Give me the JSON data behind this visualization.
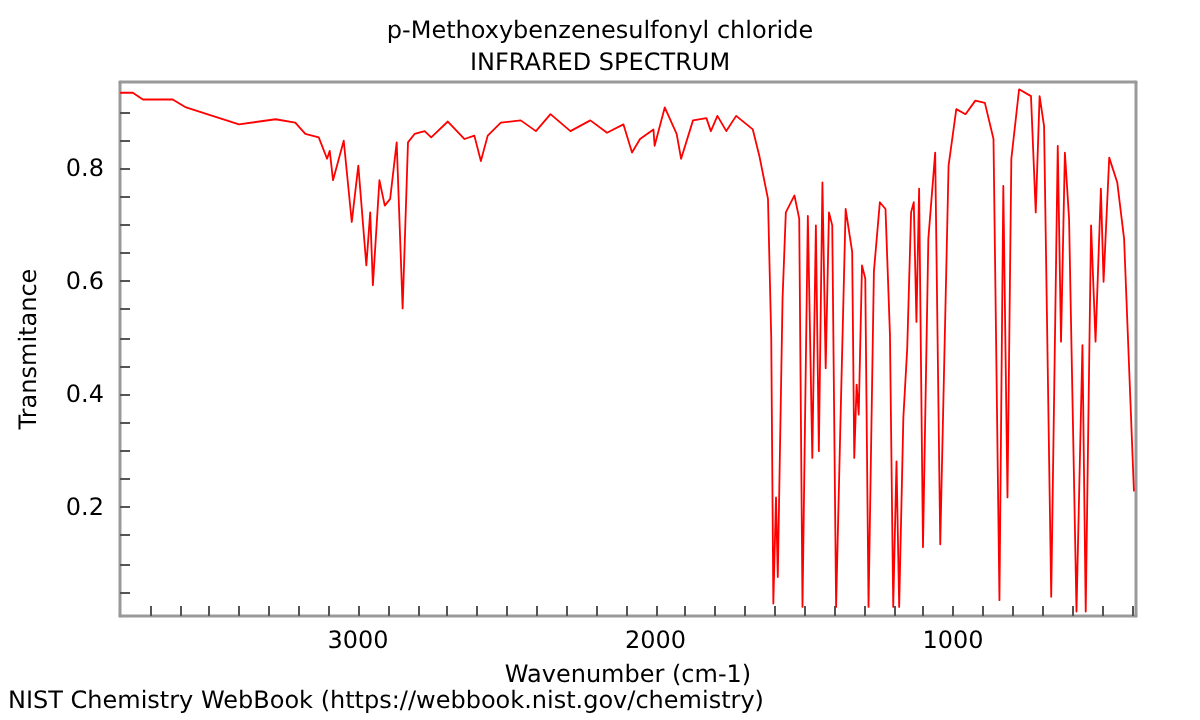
{
  "chart_data": {
    "type": "line",
    "title": "p-Methoxybenzenesulfonyl chloride",
    "subtitle": "INFRARED SPECTRUM",
    "xlabel": "Wavenumber (cm-1)",
    "ylabel": "Transmitance",
    "annotations": [
      "NIST Chemistry WebBook (https://webbook.nist.gov/chemistry)"
    ],
    "xlim": [
      3800,
      385
    ],
    "ylim": [
      0.007,
      0.953
    ],
    "xticks": [
      {
        "value": 3700,
        "label": null
      },
      {
        "value": 3600,
        "label": null
      },
      {
        "value": 3500,
        "label": null
      },
      {
        "value": 3400,
        "label": null
      },
      {
        "value": 3300,
        "label": null
      },
      {
        "value": 3200,
        "label": null
      },
      {
        "value": 3100,
        "label": null
      },
      3000,
      {
        "value": 2900,
        "label": null
      },
      {
        "value": 2800,
        "label": null
      },
      {
        "value": 2700,
        "label": null
      },
      {
        "value": 2600,
        "label": null
      },
      {
        "value": 2500,
        "label": null
      },
      {
        "value": 2400,
        "label": null
      },
      {
        "value": 2300,
        "label": null
      },
      {
        "value": 2200,
        "label": null
      },
      {
        "value": 2100,
        "label": null
      },
      2000,
      {
        "value": 1900,
        "label": null
      },
      {
        "value": 1800,
        "label": null
      },
      {
        "value": 1700,
        "label": null
      },
      {
        "value": 1600,
        "label": null
      },
      {
        "value": 1500,
        "label": null
      },
      {
        "value": 1400,
        "label": null
      },
      {
        "value": 1300,
        "label": null
      },
      {
        "value": 1200,
        "label": null
      },
      {
        "value": 1100,
        "label": null
      },
      1000,
      {
        "value": 900,
        "label": null
      },
      {
        "value": 800,
        "label": null
      },
      {
        "value": 700,
        "label": null
      },
      {
        "value": 600,
        "label": null
      },
      {
        "value": 500,
        "label": null
      },
      {
        "value": 400,
        "label": null
      }
    ],
    "yticks": [
      {
        "value": 0.05,
        "label": null
      },
      {
        "value": 0.1,
        "label": null
      },
      {
        "value": 0.15,
        "label": null
      },
      0.2,
      {
        "value": 0.25,
        "label": null
      },
      {
        "value": 0.3,
        "label": null
      },
      {
        "value": 0.35,
        "label": null
      },
      0.4,
      {
        "value": 0.45,
        "label": null
      },
      {
        "value": 0.5,
        "label": null
      },
      {
        "value": 0.55,
        "label": null
      },
      0.6,
      {
        "value": 0.65,
        "label": null
      },
      {
        "value": 0.7,
        "label": null
      },
      {
        "value": 0.75,
        "label": null
      },
      0.8,
      {
        "value": 0.85,
        "label": null
      },
      {
        "value": 0.9,
        "label": null
      }
    ],
    "grid": false,
    "marker": "none",
    "line_style": "solid",
    "series": [
      {
        "color": "#ff0000",
        "x": [
          3797,
          3757,
          3723,
          3623,
          3578,
          3489,
          3400,
          3277,
          3211,
          3177,
          3132,
          3104,
          3095,
          3084,
          3048,
          3021,
          2999,
          2972,
          2959,
          2950,
          2928,
          2910,
          2892,
          2870,
          2850,
          2832,
          2810,
          2776,
          2754,
          2698,
          2642,
          2609,
          2587,
          2564,
          2520,
          2453,
          2402,
          2353,
          2286,
          2219,
          2163,
          2108,
          2079,
          2052,
          2007,
          2003,
          1969,
          1929,
          1914,
          1874,
          1829,
          1814,
          1792,
          1762,
          1729,
          1673,
          1651,
          1622,
          1611,
          1604,
          1595,
          1589,
          1573,
          1562,
          1533,
          1517,
          1506,
          1488,
          1473,
          1461,
          1451,
          1439,
          1428,
          1417,
          1406,
          1393,
          1377,
          1361,
          1339,
          1332,
          1324,
          1317,
          1306,
          1295,
          1284,
          1266,
          1246,
          1227,
          1212,
          1201,
          1190,
          1181,
          1167,
          1154,
          1141,
          1132,
          1123,
          1114,
          1101,
          1083,
          1060,
          1043,
          1015,
          989,
          958,
          925,
          893,
          864,
          844,
          831,
          817,
          804,
          778,
          738,
          722,
          709,
          694,
          670,
          648,
          637,
          624,
          610,
          585,
          565,
          554,
          536,
          521,
          503,
          494,
          475,
          448,
          425,
          392
        ],
        "values": [
          0.934,
          0.934,
          0.922,
          0.922,
          0.908,
          0.893,
          0.878,
          0.887,
          0.881,
          0.861,
          0.855,
          0.817,
          0.831,
          0.779,
          0.849,
          0.705,
          0.805,
          0.628,
          0.722,
          0.593,
          0.779,
          0.734,
          0.746,
          0.846,
          0.552,
          0.846,
          0.861,
          0.866,
          0.855,
          0.883,
          0.852,
          0.858,
          0.813,
          0.858,
          0.881,
          0.885,
          0.866,
          0.896,
          0.866,
          0.885,
          0.863,
          0.878,
          0.828,
          0.852,
          0.869,
          0.84,
          0.908,
          0.861,
          0.817,
          0.885,
          0.889,
          0.866,
          0.893,
          0.866,
          0.893,
          0.869,
          0.822,
          0.746,
          0.499,
          0.029,
          0.217,
          0.076,
          0.57,
          0.722,
          0.752,
          0.711,
          0.023,
          0.716,
          0.287,
          0.699,
          0.299,
          0.775,
          0.446,
          0.722,
          0.699,
          0.023,
          0.381,
          0.728,
          0.652,
          0.287,
          0.417,
          0.364,
          0.628,
          0.605,
          0.023,
          0.617,
          0.74,
          0.728,
          0.505,
          0.023,
          0.281,
          0.023,
          0.358,
          0.481,
          0.722,
          0.74,
          0.528,
          0.764,
          0.129,
          0.675,
          0.828,
          0.134,
          0.805,
          0.905,
          0.896,
          0.92,
          0.916,
          0.852,
          0.035,
          0.769,
          0.217,
          0.817,
          0.94,
          0.928,
          0.722,
          0.928,
          0.875,
          0.041,
          0.84,
          0.493,
          0.828,
          0.711,
          0.015,
          0.487,
          0.015,
          0.699,
          0.493,
          0.764,
          0.599,
          0.819,
          0.775,
          0.675,
          0.229
        ]
      }
    ]
  }
}
